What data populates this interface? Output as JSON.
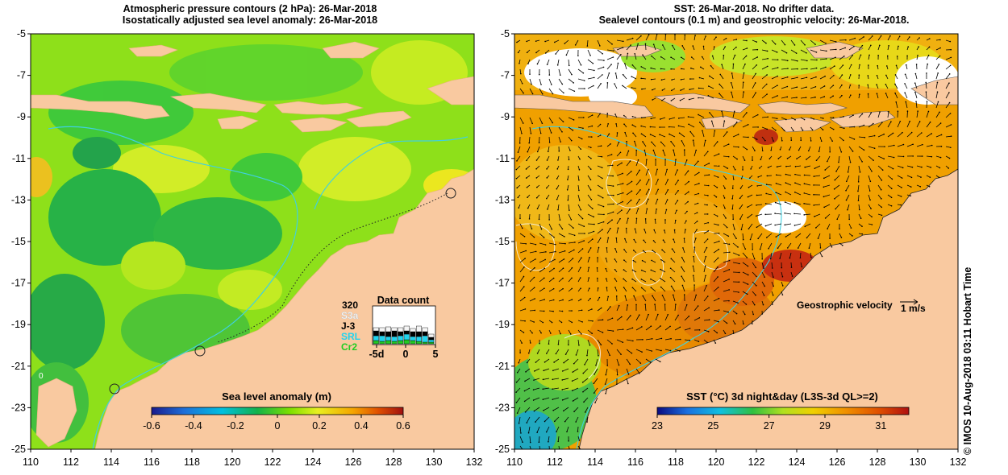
{
  "left_panel": {
    "title_line1": "Atmospheric pressure contours (2 hPa): 26-Mar-2018",
    "title_line2": "Isostatically adjusted sea level anomaly: 26-Mar-2018",
    "y_ticks": [
      "-5",
      "-7",
      "-9",
      "-11",
      "-13",
      "-15",
      "-17",
      "-19",
      "-21",
      "-23",
      "-25"
    ],
    "x_ticks": [
      "110",
      "112",
      "114",
      "116",
      "118",
      "120",
      "122",
      "124",
      "126",
      "128",
      "130",
      "132"
    ],
    "contour_label": "0",
    "colorbar": {
      "title": "Sea level anomaly (m)",
      "ticks": [
        "-0.6",
        "-0.4",
        "-0.2",
        "0",
        "0.2",
        "0.4",
        "0.6"
      ],
      "range": [
        -0.6,
        0.6
      ]
    },
    "data_count": {
      "title": "Data count",
      "max_label": "320",
      "satellites": [
        {
          "name": "S3a",
          "color": "#f5f5f5"
        },
        {
          "name": "J-3",
          "color": "#000000"
        },
        {
          "name": "SRL",
          "color": "#22d3ee"
        },
        {
          "name": "Cr2",
          "color": "#22cc22"
        }
      ],
      "x_ticks": [
        "-5d",
        "0",
        "5"
      ]
    }
  },
  "right_panel": {
    "title_line1": "SST: 26-Mar-2018. No drifter data.",
    "title_line2": "Sealevel contours (0.1 m) and geostrophic velocity: 26-Mar-2018.",
    "y_ticks": [
      "-5",
      "-7",
      "-9",
      "-11",
      "-13",
      "-15",
      "-17",
      "-19",
      "-21",
      "-23",
      "-25"
    ],
    "x_ticks": [
      "110",
      "112",
      "114",
      "116",
      "118",
      "120",
      "122",
      "124",
      "126",
      "128",
      "130",
      "132"
    ],
    "velocity_legend_label": "Geostrophic velocity",
    "velocity_legend_scale": "1 m/s",
    "colorbar": {
      "title": "SST (°C) 3d night&day (L3S-3d QL>=2)",
      "ticks": [
        "23",
        "25",
        "27",
        "29",
        "31"
      ],
      "range": [
        23,
        32
      ]
    }
  },
  "credit": "© IMOS 10-Aug-2018 03:11 Hobart Time",
  "colors": {
    "land": "#f9c9a0",
    "sla_ramp": [
      "#1a1a8c",
      "#1e6fd9",
      "#00c0e0",
      "#12b24a",
      "#7ee000",
      "#e8f020",
      "#f5a500",
      "#e05000",
      "#a01010"
    ],
    "sst_ramp": [
      "#0a0a80",
      "#1a70e0",
      "#10c0e0",
      "#30c040",
      "#b0e020",
      "#f0d000",
      "#f09000",
      "#e05000",
      "#b01010"
    ]
  }
}
